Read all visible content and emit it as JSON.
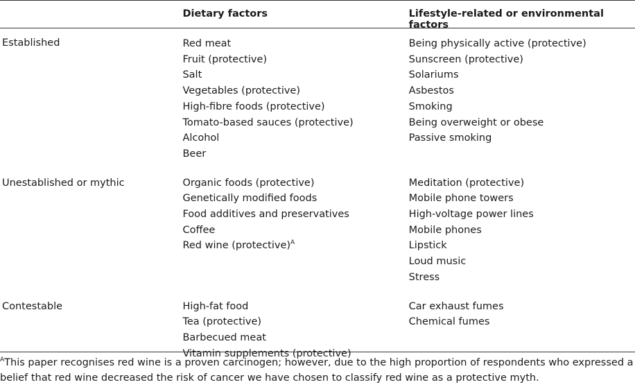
{
  "headers": {
    "category": "",
    "dietary": "Dietary factors",
    "lifestyle": "Lifestyle-related or environmental factors"
  },
  "groups": [
    {
      "category": "Established",
      "dietary": [
        "Red meat",
        "Fruit (protective)",
        "Salt",
        "Vegetables (protective)",
        "High-fibre foods (protective)",
        "Tomato-based sauces (protective)",
        "Alcohol",
        "Beer"
      ],
      "lifestyle": [
        "Being physically active (protective)",
        "Sunscreen (protective)",
        "Solariums",
        "Asbestos",
        "Smoking",
        "Being overweight or obese",
        "Passive smoking"
      ]
    },
    {
      "category": "Unestablished or mythic",
      "dietary": [
        "Organic foods (protective)",
        "Genetically modified foods",
        "Food additives and preservatives",
        "Coffee",
        "Red wine (protective)"
      ],
      "lifestyle": [
        "Meditation (protective)",
        "Mobile phone towers",
        "High-voltage power lines",
        "Mobile phones",
        "Lipstick",
        "Loud music",
        "Stress"
      ]
    },
    {
      "category": "Contestable",
      "dietary": [
        "High-fat food",
        "Tea (protective)",
        "Barbecued meat",
        "Vitamin supplements (protective)"
      ],
      "lifestyle": [
        "Car exhaust fumes",
        "Chemical fumes"
      ]
    }
  ],
  "superscript_marker": "A",
  "footnote": {
    "marker": "A",
    "text": "This paper recognises red wine is a proven carcinogen; however, due to the high proportion of respondents who expressed a belief that red wine decreased the risk of cancer we have chosen to classify red wine as a protective myth."
  }
}
